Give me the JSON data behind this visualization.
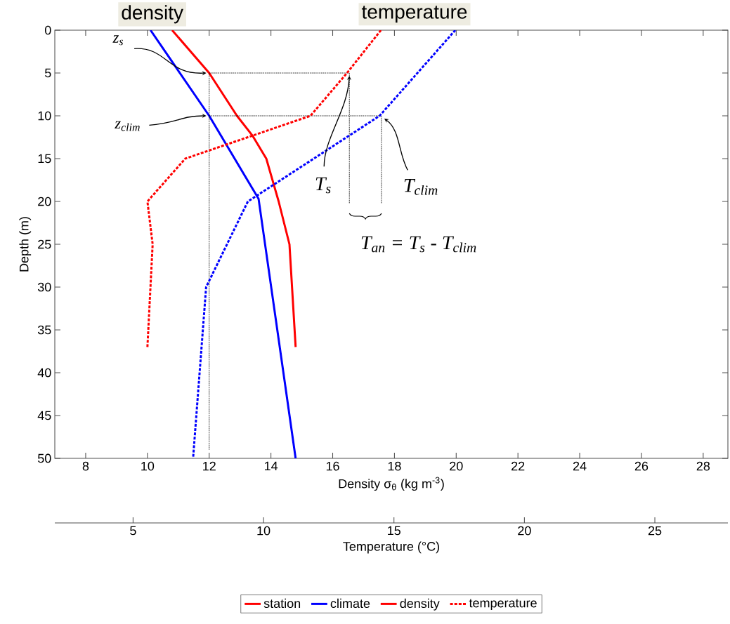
{
  "chart_data": {
    "type": "line",
    "xlabel": "Density σ$_{θ}$ (kg m$^{-3}$)",
    "ylabel": "Depth (m)",
    "x2label": "Temperature (°C)",
    "xlim": [
      7,
      28.8
    ],
    "xticks": [
      8,
      10,
      12,
      14,
      16,
      18,
      20,
      22,
      24,
      26,
      28
    ],
    "x2lim": [
      2,
      27.8
    ],
    "x2ticks": [
      5,
      10,
      15,
      20,
      25
    ],
    "ylim": [
      50,
      0
    ],
    "yticks": [
      0,
      5,
      10,
      15,
      20,
      25,
      30,
      35,
      40,
      45,
      50
    ],
    "legend": "bottom",
    "series": [
      {
        "name": "station",
        "color": "#ff0000",
        "line_style": "solid",
        "x": [
          10.8,
          12.0,
          12.9,
          13.4,
          13.85,
          14.25,
          14.6,
          14.8
        ],
        "values": [
          0,
          5,
          10,
          12.3,
          15,
          20,
          25,
          37
        ]
      },
      {
        "name": "climate",
        "color": "#0000ff",
        "line_style": "solid",
        "x": [
          10.1,
          12.0,
          13.6,
          14.8
        ],
        "values": [
          0,
          10,
          19.7,
          50
        ]
      },
      {
        "name": "temperature",
        "color": "#ff0000",
        "line_style": "dashed",
        "axis": "x2",
        "x": [
          14.5,
          13.2,
          11.8,
          7.0,
          5.55,
          5.75,
          5.55
        ],
        "values": [
          0,
          5,
          10,
          15,
          20,
          25,
          37
        ]
      },
      {
        "color": "#0000ff",
        "line_style": "dashed",
        "axis": "x2",
        "x": [
          17.35,
          14.45,
          9.4,
          7.8,
          7.3
        ],
        "values": [
          0,
          10,
          20,
          30,
          50
        ]
      },
      {
        "color": "#000000",
        "line_style": "dotted",
        "x": [
          12,
          12,
          16.54,
          16.54
        ],
        "values": [
          49,
          5,
          5,
          20.2
        ]
      },
      {
        "color": "#000000",
        "line_style": "dotted",
        "x": [
          12,
          17.58,
          17.58
        ],
        "values": [
          10,
          10,
          20.2
        ]
      }
    ],
    "annotations": [
      "density",
      "temperature",
      "z$_{s}$",
      "z$_{clim}$",
      {
        "text": "T$_{s}$",
        "x": 16.54,
        "y": 5
      },
      "T$_{clim}$",
      "T$_{an}$ = T$_{s}$ - T$_{clim}$"
    ]
  }
}
